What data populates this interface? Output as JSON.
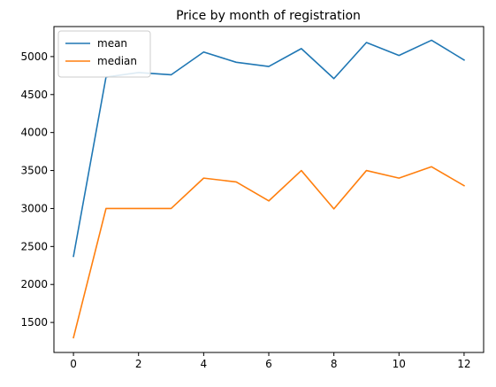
{
  "chart_data": {
    "type": "line",
    "title": "Price by month of registration",
    "xlabel": "",
    "ylabel": "",
    "x": [
      0,
      1,
      2,
      3,
      4,
      5,
      6,
      7,
      8,
      9,
      10,
      11,
      12
    ],
    "xlim": [
      -0.6,
      12.6
    ],
    "ylim": [
      1105,
      5395
    ],
    "xticks": [
      0,
      2,
      4,
      6,
      8,
      10,
      12
    ],
    "yticks": [
      1500,
      2000,
      2500,
      3000,
      3500,
      4000,
      4500,
      5000
    ],
    "grid": false,
    "legend_position": "top-left",
    "series": [
      {
        "name": "mean",
        "color": "#1f77b4",
        "values": [
          2370,
          4730,
          4790,
          4760,
          5060,
          4925,
          4870,
          5105,
          4710,
          5185,
          5015,
          5215,
          4955
        ]
      },
      {
        "name": "median",
        "color": "#ff7f0e",
        "values": [
          1300,
          3000,
          3000,
          3000,
          3400,
          3350,
          3100,
          3500,
          2995,
          3500,
          3400,
          3550,
          3300
        ]
      }
    ]
  }
}
